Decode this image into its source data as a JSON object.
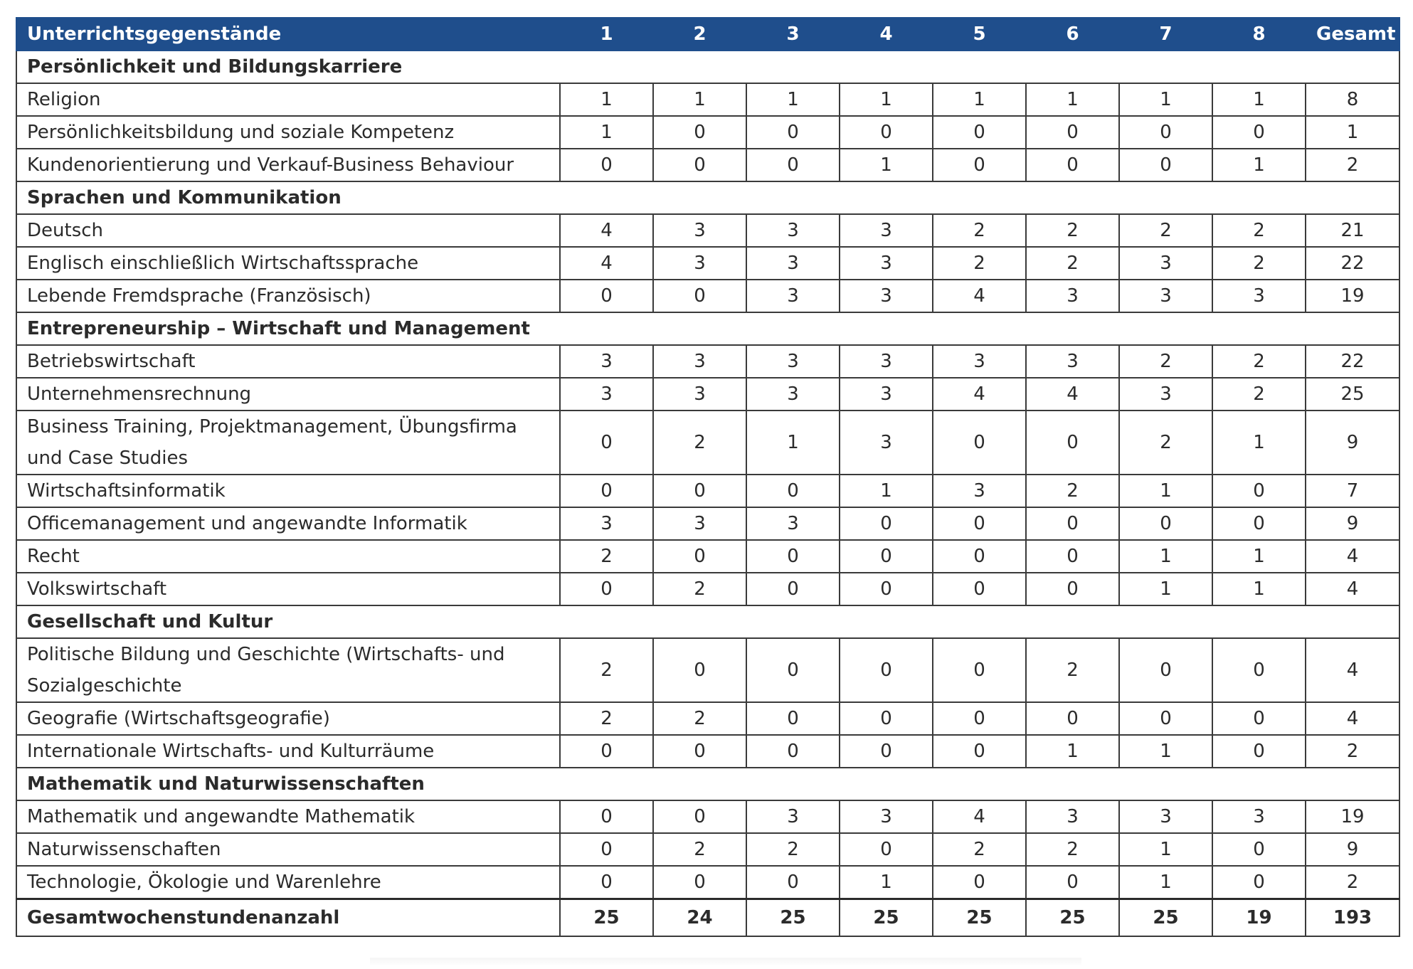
{
  "header": {
    "subject_label": "Unterrichtsgegenstände",
    "columns": [
      "1",
      "2",
      "3",
      "4",
      "5",
      "6",
      "7",
      "8"
    ],
    "total_label": "Gesamt"
  },
  "rows": [
    {
      "type": "category",
      "label": "Persönlichkeit und Bildungskarriere"
    },
    {
      "type": "subject",
      "label": "Religion",
      "values": [
        "1",
        "1",
        "1",
        "1",
        "1",
        "1",
        "1",
        "1"
      ],
      "total": "8"
    },
    {
      "type": "subject",
      "label": "Persönlichkeitsbildung und soziale Kompetenz",
      "values": [
        "1",
        "0",
        "0",
        "0",
        "0",
        "0",
        "0",
        "0"
      ],
      "total": "1"
    },
    {
      "type": "subject",
      "label": "Kundenorientierung und Verkauf-Business Behaviour",
      "values": [
        "0",
        "0",
        "0",
        "1",
        "0",
        "0",
        "0",
        "1"
      ],
      "total": "2"
    },
    {
      "type": "category",
      "label": "Sprachen und Kommunikation"
    },
    {
      "type": "subject",
      "label": "Deutsch",
      "values": [
        "4",
        "3",
        "3",
        "3",
        "2",
        "2",
        "2",
        "2"
      ],
      "total": "21"
    },
    {
      "type": "subject",
      "label": "Englisch einschließlich Wirtschaftssprache",
      "values": [
        "4",
        "3",
        "3",
        "3",
        "2",
        "2",
        "3",
        "2"
      ],
      "total": "22"
    },
    {
      "type": "subject",
      "label": "Lebende Fremdsprache (Französisch)",
      "values": [
        "0",
        "0",
        "3",
        "3",
        "4",
        "3",
        "3",
        "3"
      ],
      "total": "19"
    },
    {
      "type": "category",
      "label": "Entrepreneurship – Wirtschaft und Management"
    },
    {
      "type": "subject",
      "label": "Betriebswirtschaft",
      "values": [
        "3",
        "3",
        "3",
        "3",
        "3",
        "3",
        "2",
        "2"
      ],
      "total": "22"
    },
    {
      "type": "subject",
      "label": "Unternehmensrechnung",
      "values": [
        "3",
        "3",
        "3",
        "3",
        "4",
        "4",
        "3",
        "2"
      ],
      "total": "25"
    },
    {
      "type": "subject",
      "label": "Business Training, Projektmanagement, Übungsfirma und Case Studies",
      "values": [
        "0",
        "2",
        "1",
        "3",
        "0",
        "0",
        "2",
        "1"
      ],
      "total": "9",
      "tall": true
    },
    {
      "type": "subject",
      "label": "Wirtschaftsinformatik",
      "values": [
        "0",
        "0",
        "0",
        "1",
        "3",
        "2",
        "1",
        "0"
      ],
      "total": "7"
    },
    {
      "type": "subject",
      "label": "Officemanagement und angewandte Informatik",
      "values": [
        "3",
        "3",
        "3",
        "0",
        "0",
        "0",
        "0",
        "0"
      ],
      "total": "9"
    },
    {
      "type": "subject",
      "label": "Recht",
      "values": [
        "2",
        "0",
        "0",
        "0",
        "0",
        "0",
        "1",
        "1"
      ],
      "total": "4"
    },
    {
      "type": "subject",
      "label": "Volkswirtschaft",
      "values": [
        "0",
        "2",
        "0",
        "0",
        "0",
        "0",
        "1",
        "1"
      ],
      "total": "4"
    },
    {
      "type": "category",
      "label": "Gesellschaft und Kultur"
    },
    {
      "type": "subject",
      "label": "Politische Bildung und Geschichte (Wirtschafts- und Sozialgeschichte",
      "values": [
        "2",
        "0",
        "0",
        "0",
        "0",
        "2",
        "0",
        "0"
      ],
      "total": "4",
      "tall": true
    },
    {
      "type": "subject",
      "label": "Geografie (Wirtschaftsgeografie)",
      "values": [
        "2",
        "2",
        "0",
        "0",
        "0",
        "0",
        "0",
        "0"
      ],
      "total": "4"
    },
    {
      "type": "subject",
      "label": "Internationale Wirtschafts- und Kulturräume",
      "values": [
        "0",
        "0",
        "0",
        "0",
        "0",
        "1",
        "1",
        "0"
      ],
      "total": "2"
    },
    {
      "type": "category",
      "label": "Mathematik und Naturwissenschaften"
    },
    {
      "type": "subject",
      "label": "Mathematik und angewandte Mathematik",
      "values": [
        "0",
        "0",
        "3",
        "3",
        "4",
        "3",
        "3",
        "3"
      ],
      "total": "19"
    },
    {
      "type": "subject",
      "label": "Naturwissenschaften",
      "values": [
        "0",
        "2",
        "2",
        "0",
        "2",
        "2",
        "1",
        "0"
      ],
      "total": "9"
    },
    {
      "type": "subject",
      "label": "Technologie, Ökologie und Warenlehre",
      "values": [
        "0",
        "0",
        "0",
        "1",
        "0",
        "0",
        "1",
        "0"
      ],
      "total": "2"
    }
  ],
  "footer": {
    "label": "Gesamtwochenstundenanzahl",
    "values": [
      "25",
      "24",
      "25",
      "25",
      "25",
      "25",
      "25",
      "19"
    ],
    "total": "193"
  },
  "colors": {
    "header_bg": "#1f4e8c",
    "header_text": "#ffffff",
    "border": "#3a3a3a",
    "text": "#2b2b2b"
  }
}
